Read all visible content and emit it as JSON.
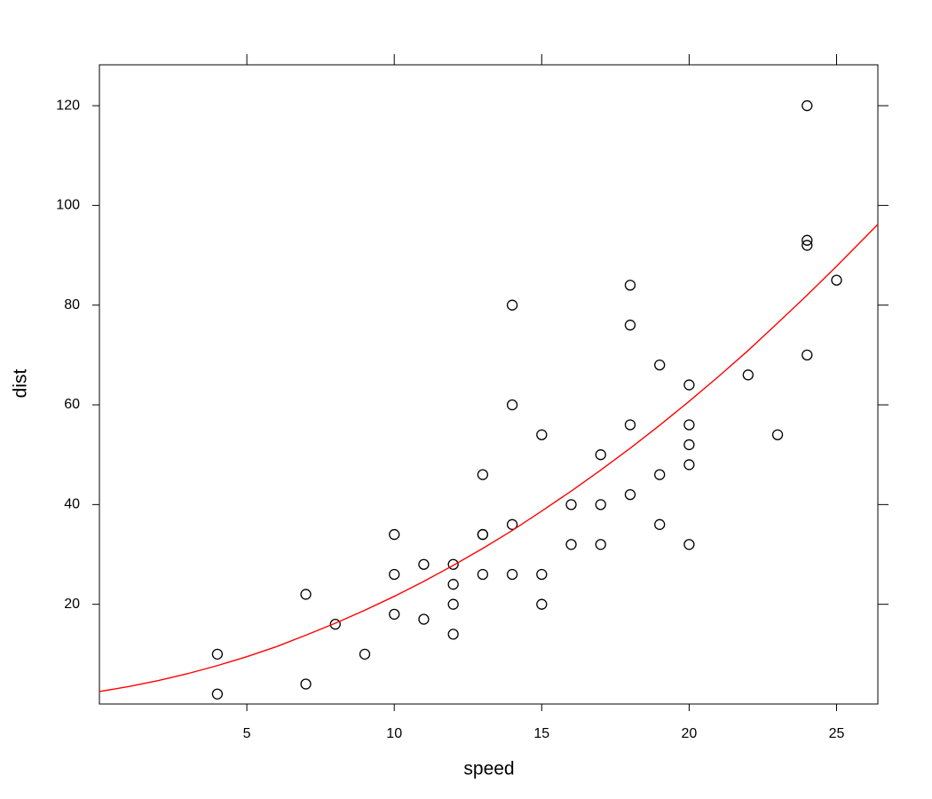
{
  "chart_data": {
    "type": "scatter",
    "x_label": "speed",
    "y_label": "dist",
    "xlim": [
      0,
      26.4
    ],
    "ylim": [
      0,
      128.2
    ],
    "xticks": [
      5,
      10,
      15,
      20,
      25
    ],
    "yticks": [
      20,
      40,
      60,
      80,
      100,
      120
    ],
    "series": [
      {
        "type": "scatter",
        "color": "#000000",
        "x": [
          4,
          4,
          7,
          7,
          8,
          9,
          10,
          10,
          10,
          11,
          11,
          12,
          12,
          12,
          12,
          13,
          13,
          13,
          13,
          14,
          14,
          14,
          14,
          15,
          15,
          15,
          16,
          16,
          17,
          17,
          17,
          18,
          18,
          18,
          18,
          19,
          19,
          19,
          20,
          20,
          20,
          20,
          20,
          22,
          23,
          24,
          24,
          24,
          24,
          25
        ],
        "values": [
          2,
          10,
          4,
          22,
          16,
          10,
          18,
          26,
          34,
          17,
          28,
          14,
          20,
          24,
          28,
          26,
          34,
          34,
          46,
          26,
          36,
          60,
          80,
          20,
          26,
          54,
          32,
          40,
          32,
          40,
          50,
          42,
          56,
          76,
          84,
          36,
          46,
          68,
          32,
          48,
          52,
          56,
          64,
          66,
          54,
          70,
          92,
          93,
          120,
          85
        ]
      },
      {
        "type": "line",
        "color": "#ff0000",
        "x": [
          0,
          1,
          2,
          3,
          4,
          5,
          6,
          7,
          8,
          9,
          10,
          11,
          12,
          13,
          14,
          15,
          16,
          17,
          18,
          19,
          20,
          21,
          22,
          23,
          24,
          25,
          26,
          26.4
        ],
        "values": [
          2.5,
          3.5,
          4.7,
          6.1,
          7.7,
          9.5,
          11.5,
          13.8,
          16.2,
          18.8,
          21.6,
          24.6,
          27.8,
          31.2,
          34.8,
          38.7,
          42.7,
          46.9,
          51.3,
          55.9,
          60.7,
          65.7,
          70.9,
          76.4,
          82.0,
          87.8,
          93.8,
          96.2
        ]
      }
    ]
  }
}
